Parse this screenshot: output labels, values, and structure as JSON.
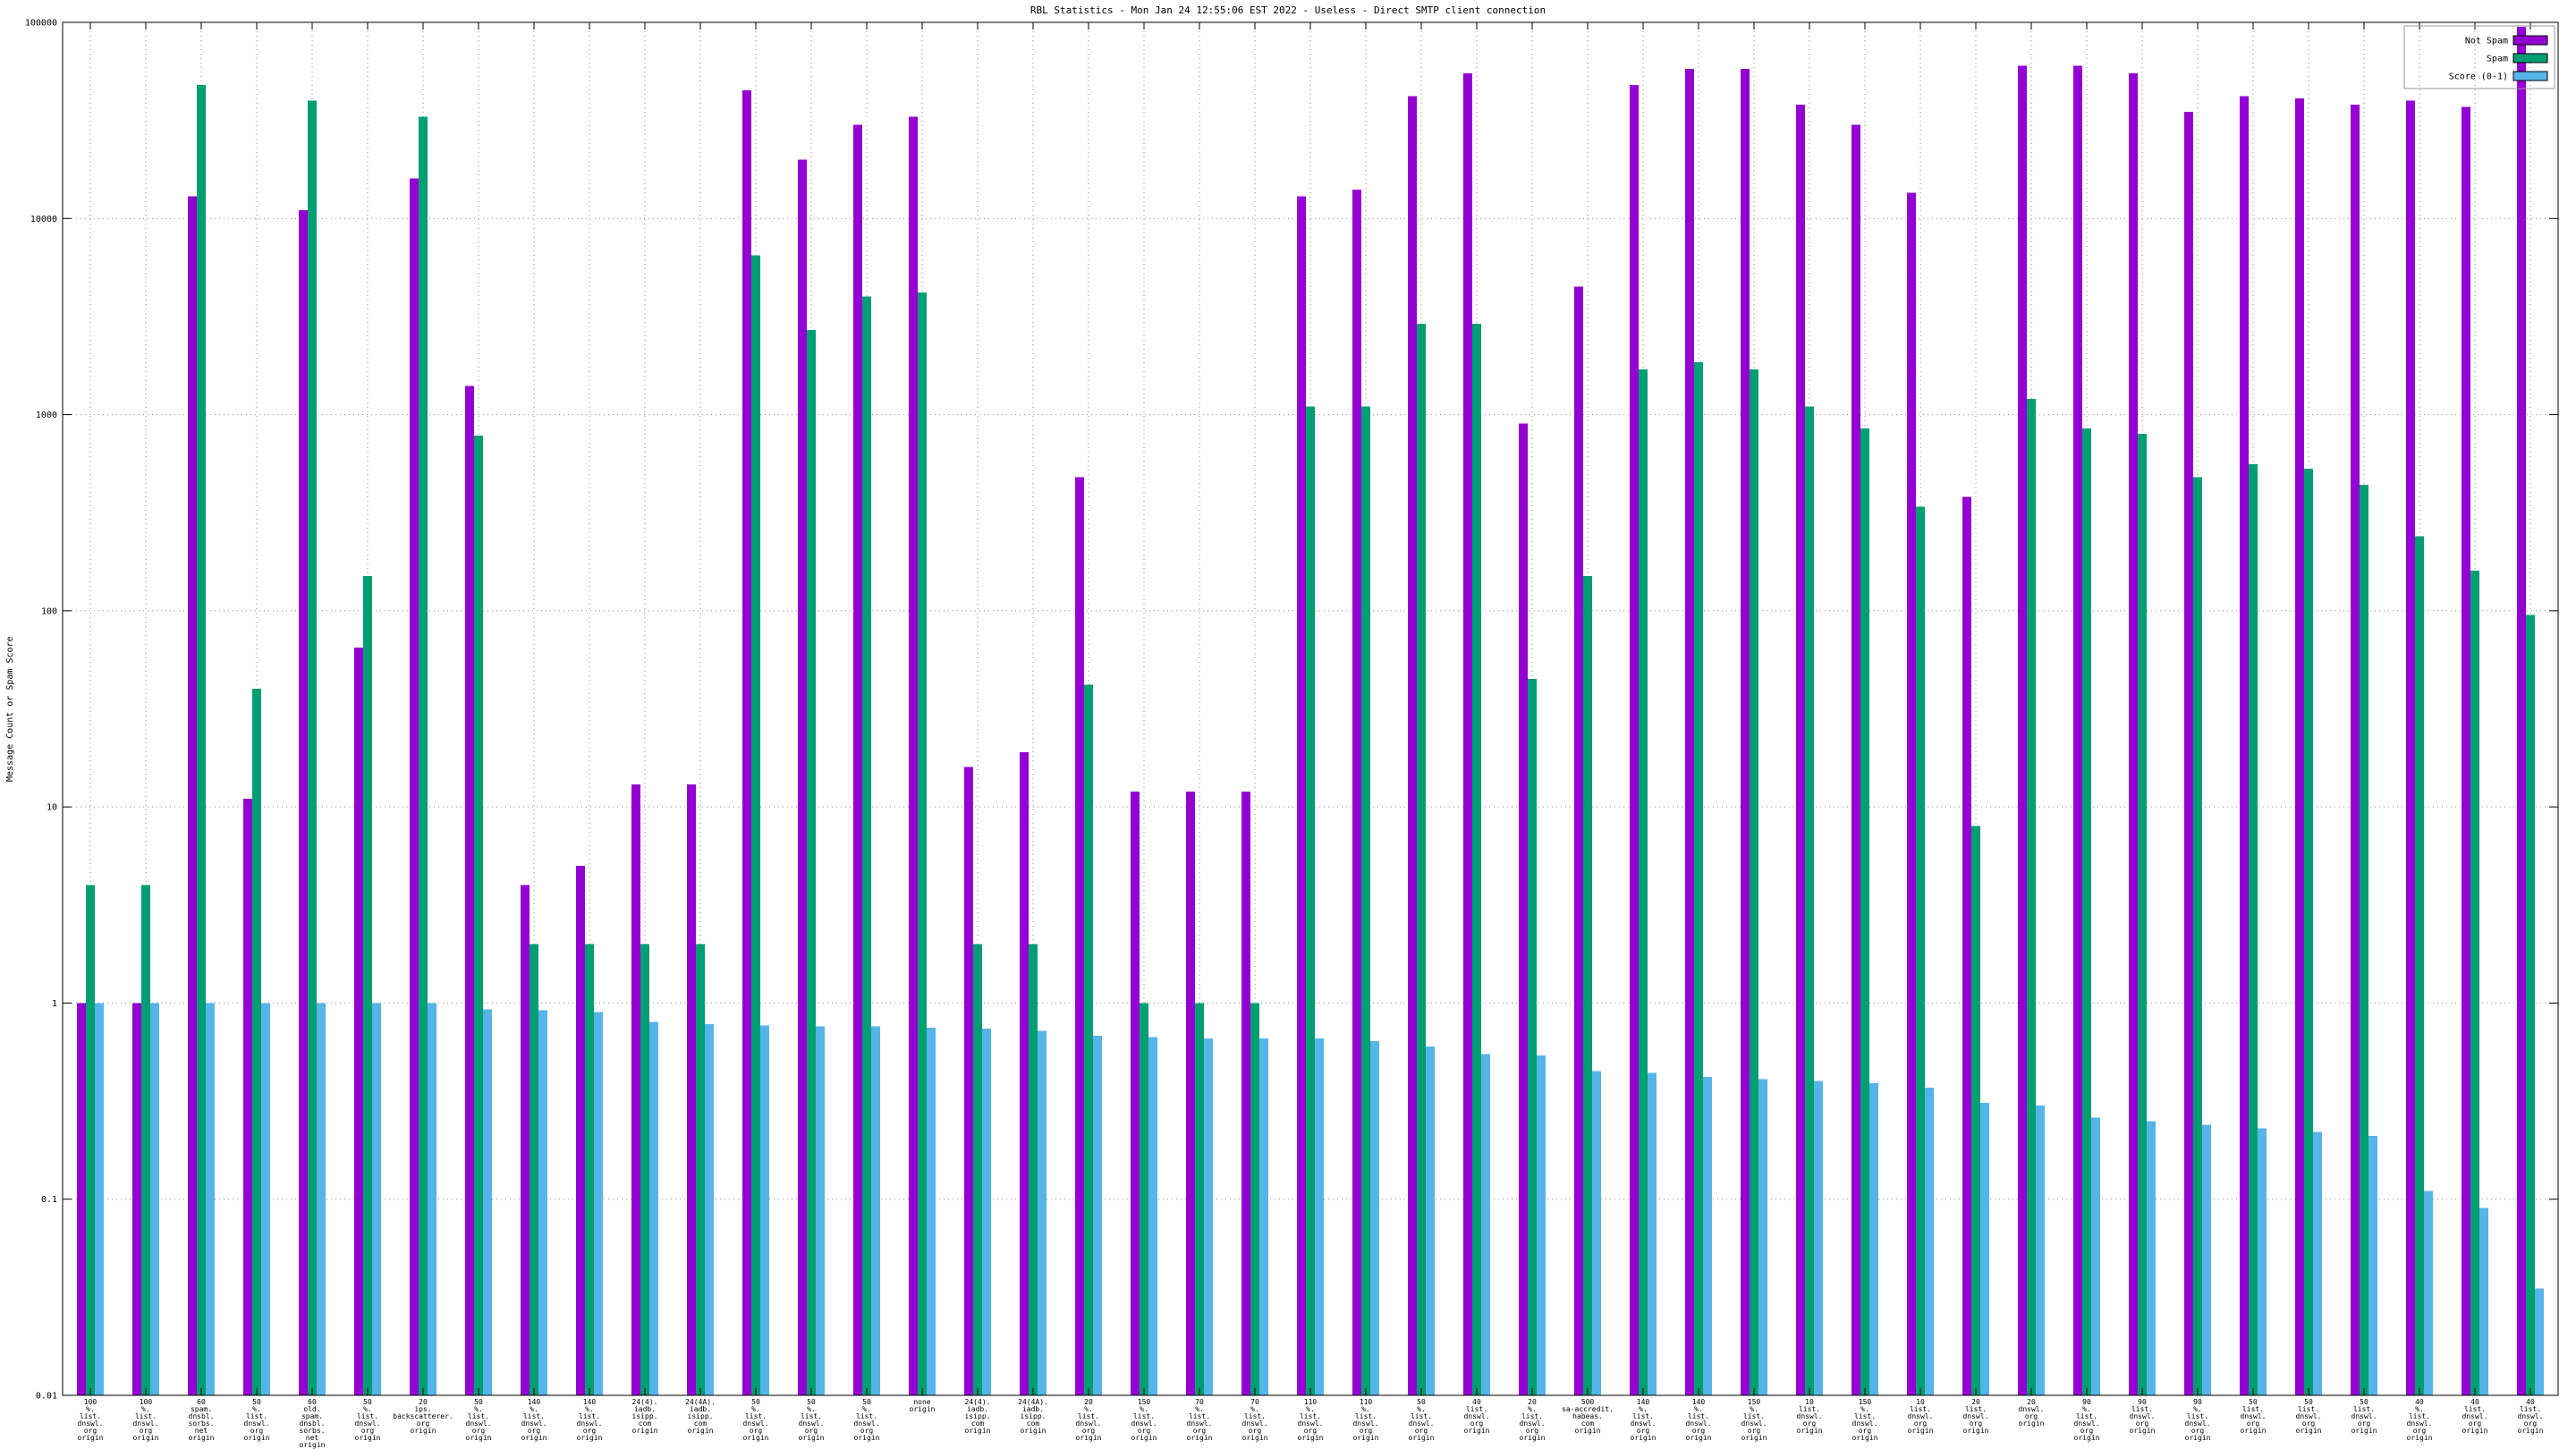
{
  "chart_data": {
    "type": "bar",
    "title": "RBL Statistics - Mon Jan 24 12:55:06 EST 2022 - Useless - Direct SMTP client connection",
    "ylabel": "Message Count or Spam Score",
    "y_scale": "log",
    "ylim": [
      0.01,
      100000
    ],
    "grid": true,
    "legend_position": "top-right",
    "background": "#ffffff",
    "yticks": [
      {
        "label": "100000",
        "value": 100000
      },
      {
        "label": "10000",
        "value": 10000
      },
      {
        "label": "1000",
        "value": 1000
      },
      {
        "label": "100",
        "value": 100
      },
      {
        "label": "10",
        "value": 10
      },
      {
        "label": "1",
        "value": 1
      },
      {
        "label": "0.1",
        "value": 0.1
      },
      {
        "label": "0.01",
        "value": 0.01
      }
    ],
    "colors": {
      "not_spam": "#9400d3",
      "spam": "#009e73",
      "score": "#56b4e9"
    },
    "categories": [
      "100\n%.\nlist.\ndnswl.\norg\norigin",
      "100\n%.\nlist.\ndnswl.\norg\norigin",
      "60\nspam.\ndnsbl.\nsorbs.\nnet\norigin",
      "50\n%.\nlist.\ndnswl.\norg\norigin",
      "60\nold.\nspam.\ndnsbl.\nsorbs.\nnet\norigin",
      "50\n%.\nlist.\ndnswl.\norg\norigin",
      "20\nips.\nbackscatterer.\norg\norigin",
      "50\n%.\nlist.\ndnswl.\norg\norigin",
      "140\n%.\nlist.\ndnswl.\norg\norigin",
      "140\n%.\nlist.\ndnswl.\norg\norigin",
      "24(4).\niadb.\nisipp.\ncom\norigin",
      "24(4A).\niadb.\nisipp.\ncom\norigin",
      "50\n%.\nlist.\ndnswl.\norg\norigin",
      "50\n%.\nlist.\ndnswl.\norg\norigin",
      "50\n%.\nlist.\ndnswl.\norg\norigin",
      "none\norigin",
      "24(4).\niadb.\nisipp.\ncom\norigin",
      "24(4A).\niadb.\nisipp.\ncom\norigin",
      "20\n%.\nlist.\ndnswl.\norg\norigin",
      "150\n%.\nlist.\ndnswl.\norg\norigin",
      "70\n%.\nlist.\ndnswl.\norg\norigin",
      "70\n%.\nlist.\ndnswl.\norg\norigin",
      "110\n%.\nlist.\ndnswl.\norg\norigin",
      "110\n%.\nlist.\ndnswl.\norg\norigin",
      "50\n%.\nlist.\ndnswl.\norg\norigin",
      "40\nlist.\ndnswl.\norg\norigin",
      "20\n%.\nlist.\ndnswl.\norg\norigin",
      "500\nsa-accredit.\nhabeas.\ncom\norigin",
      "140\n%.\nlist.\ndnswl.\norg\norigin",
      "140\n%.\nlist.\ndnswl.\norg\norigin",
      "150\n%.\nlist.\ndnswl.\norg\norigin",
      "10\nlist.\ndnswl.\norg\norigin",
      "150\n%.\nlist.\ndnswl.\norg\norigin",
      "10\nlist.\ndnswl.\norg\norigin",
      "20\nlist.\ndnswl.\norg\norigin",
      "20\ndnswl.\norg\norigin",
      "90\n%.\nlist.\ndnswl.\norg\norigin",
      "90\nlist.\ndnswl.\norg\norigin",
      "90\n%.\nlist.\ndnswl.\norg\norigin",
      "50\nlist.\ndnswl.\norg\norigin",
      "50\nlist.\ndnswl.\norg\norigin",
      "50\nlist.\ndnswl.\norg\norigin",
      "40\n%.\nlist.\ndnswl.\norg\norigin",
      "40\nlist.\ndnswl.\norg\norigin",
      "40\nlist.\ndnswl.\norg\norigin"
    ],
    "series": [
      {
        "name": "Not Spam",
        "color_key": "not_spam",
        "values": [
          1,
          1,
          13000,
          11,
          11000,
          65,
          16000,
          1400,
          4,
          5,
          13,
          13,
          45000,
          20000,
          30000,
          33000,
          16,
          19,
          480,
          12,
          12,
          12,
          13000,
          14000,
          42000,
          55000,
          900,
          4500,
          48000,
          58000,
          58000,
          38000,
          30000,
          13500,
          380,
          60000,
          60000,
          55000,
          35000,
          42000,
          41000,
          38000,
          40000,
          37000,
          95000
        ]
      },
      {
        "name": "Spam",
        "color_key": "spam",
        "values": [
          4,
          4,
          48000,
          40,
          40000,
          150,
          33000,
          780,
          2,
          2,
          2,
          2,
          6500,
          2700,
          4000,
          4200,
          2,
          2,
          42,
          1,
          1,
          1,
          1100,
          1100,
          2900,
          2900,
          45,
          150,
          1700,
          1850,
          1700,
          1100,
          850,
          340,
          8,
          1200,
          850,
          800,
          480,
          560,
          530,
          440,
          240,
          160,
          95
        ]
      },
      {
        "name": "Score (0-1)",
        "color_key": "score",
        "values": [
          1.0,
          1.0,
          1.0,
          1.0,
          1.0,
          1.0,
          1.0,
          0.93,
          0.92,
          0.9,
          0.8,
          0.78,
          0.77,
          0.76,
          0.76,
          0.75,
          0.74,
          0.72,
          0.68,
          0.67,
          0.66,
          0.66,
          0.66,
          0.64,
          0.6,
          0.55,
          0.54,
          0.45,
          0.44,
          0.42,
          0.41,
          0.4,
          0.39,
          0.37,
          0.31,
          0.3,
          0.26,
          0.25,
          0.24,
          0.23,
          0.22,
          0.21,
          0.11,
          0.09,
          0.035
        ]
      }
    ]
  }
}
